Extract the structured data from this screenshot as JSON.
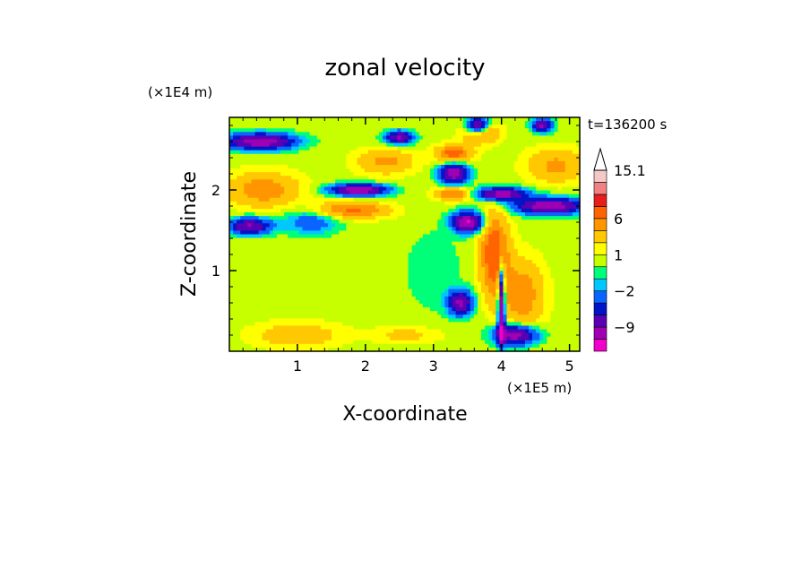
{
  "chart_data": {
    "type": "heatmap",
    "title": "zonal velocity",
    "xlabel": "X-coordinate",
    "ylabel": "Z-coordinate",
    "x_multiplier": "(×1E5 m)",
    "y_multiplier": "(×1E4 m)",
    "time_label": "t=136200 s",
    "xlim": [
      0,
      5.15
    ],
    "ylim": [
      0,
      2.9
    ],
    "x_ticks": [
      1,
      2,
      3,
      4,
      5
    ],
    "y_ticks": [
      1,
      2
    ],
    "colorbar": {
      "levels": [
        -15,
        -12,
        -9,
        -6,
        -4,
        -2,
        -1,
        0,
        1,
        2,
        4,
        6,
        9,
        12,
        15.1
      ],
      "colors": [
        "#f000c8",
        "#a000b4",
        "#5a00b4",
        "#0014c8",
        "#0a64ff",
        "#00c8ff",
        "#00ff78",
        "#c8ff00",
        "#ffff00",
        "#ffc800",
        "#ff9600",
        "#ff6400",
        "#e61e1e",
        "#f08282",
        "#f5c8c8"
      ],
      "tick_labels": [
        {
          "value": 15.1,
          "text": "15.1"
        },
        {
          "value": 6,
          "text": "6"
        },
        {
          "value": 1,
          "text": "1"
        },
        {
          "value": -2,
          "text": "−2"
        },
        {
          "value": -9,
          "text": "−9"
        }
      ],
      "extend": "max"
    },
    "field": [
      {
        "x": 0.45,
        "z": 2.6,
        "u": -12,
        "sx": 0.5,
        "sz": 0.1
      },
      {
        "x": 1.9,
        "z": 2.0,
        "u": -13,
        "sx": 0.4,
        "sz": 0.07
      },
      {
        "x": 2.5,
        "z": 2.65,
        "u": -10,
        "sx": 0.2,
        "sz": 0.08
      },
      {
        "x": 3.3,
        "z": 2.2,
        "u": -12,
        "sx": 0.2,
        "sz": 0.12
      },
      {
        "x": 3.65,
        "z": 2.8,
        "u": -11,
        "sx": 0.15,
        "sz": 0.1
      },
      {
        "x": 3.5,
        "z": 1.6,
        "u": -13,
        "sx": 0.22,
        "sz": 0.12
      },
      {
        "x": 4.0,
        "z": 1.95,
        "u": -12,
        "sx": 0.35,
        "sz": 0.08
      },
      {
        "x": 4.7,
        "z": 1.8,
        "u": -12,
        "sx": 0.5,
        "sz": 0.1
      },
      {
        "x": 4.6,
        "z": 2.8,
        "u": -10,
        "sx": 0.15,
        "sz": 0.08
      },
      {
        "x": 0.3,
        "z": 1.55,
        "u": -10,
        "sx": 0.3,
        "sz": 0.1
      },
      {
        "x": 3.4,
        "z": 0.6,
        "u": -10,
        "sx": 0.18,
        "sz": 0.15
      },
      {
        "x": 4.2,
        "z": 0.2,
        "u": -12,
        "sx": 0.3,
        "sz": 0.12
      },
      {
        "x": 4.0,
        "z": 0.6,
        "u": -14,
        "sx": 0.05,
        "sz": 0.5
      },
      {
        "x": 1.2,
        "z": 1.6,
        "u": -4,
        "sx": 0.4,
        "sz": 0.15
      },
      {
        "x": 0.5,
        "z": 2.0,
        "u": 5,
        "sx": 0.5,
        "sz": 0.2
      },
      {
        "x": 1.8,
        "z": 1.75,
        "u": 6,
        "sx": 0.5,
        "sz": 0.1
      },
      {
        "x": 2.3,
        "z": 2.35,
        "u": 4,
        "sx": 0.4,
        "sz": 0.15
      },
      {
        "x": 3.3,
        "z": 2.45,
        "u": 7,
        "sx": 0.25,
        "sz": 0.1
      },
      {
        "x": 3.3,
        "z": 1.95,
        "u": 6,
        "sx": 0.25,
        "sz": 0.08
      },
      {
        "x": 3.9,
        "z": 1.2,
        "u": 8,
        "sx": 0.2,
        "sz": 0.5
      },
      {
        "x": 4.3,
        "z": 0.7,
        "u": 5,
        "sx": 0.3,
        "sz": 0.4
      },
      {
        "x": 4.8,
        "z": 2.3,
        "u": 4,
        "sx": 0.4,
        "sz": 0.2
      },
      {
        "x": 3.7,
        "z": 2.7,
        "u": 5,
        "sx": 0.25,
        "sz": 0.12
      },
      {
        "x": 1.0,
        "z": 0.2,
        "u": 3,
        "sx": 0.6,
        "sz": 0.15
      },
      {
        "x": 2.6,
        "z": 0.2,
        "u": 2,
        "sx": 0.5,
        "sz": 0.1
      },
      {
        "x": 3.0,
        "z": 1.0,
        "u": -1.5,
        "sx": 0.4,
        "sz": 0.5
      }
    ]
  }
}
